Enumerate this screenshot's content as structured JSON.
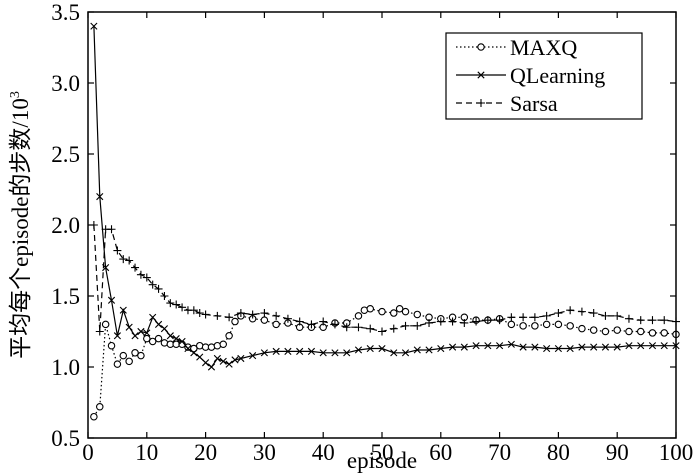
{
  "chart_data": {
    "type": "line",
    "xlabel": "episode",
    "ylabel": "平均每个episode的步数/10",
    "ylabel_superscript": "3",
    "xlim": [
      0,
      100
    ],
    "ylim": [
      0.5,
      3.5
    ],
    "xticks": [
      "0",
      "10",
      "20",
      "30",
      "40",
      "50",
      "60",
      "70",
      "80",
      "90",
      "100"
    ],
    "yticks": [
      "0.5",
      "1.0",
      "1.5",
      "2.0",
      "2.5",
      "3.0",
      "3.5"
    ],
    "legend_position": "top-right",
    "series": [
      {
        "name": "MAXQ",
        "style": "dotted-circle",
        "x": [
          1,
          2,
          3,
          4,
          5,
          6,
          7,
          8,
          9,
          10,
          11,
          12,
          13,
          14,
          15,
          16,
          17,
          18,
          19,
          20,
          21,
          22,
          23,
          24,
          25,
          26,
          28,
          30,
          32,
          34,
          36,
          38,
          40,
          42,
          44,
          46,
          47,
          48,
          50,
          52,
          53,
          54,
          56,
          58,
          60,
          62,
          64,
          66,
          68,
          70,
          72,
          74,
          76,
          78,
          80,
          82,
          84,
          86,
          88,
          90,
          92,
          94,
          96,
          98,
          100
        ],
        "y": [
          0.65,
          0.72,
          1.3,
          1.15,
          1.02,
          1.08,
          1.04,
          1.1,
          1.08,
          1.2,
          1.18,
          1.2,
          1.17,
          1.16,
          1.16,
          1.16,
          1.14,
          1.13,
          1.15,
          1.14,
          1.14,
          1.15,
          1.16,
          1.22,
          1.32,
          1.36,
          1.34,
          1.33,
          1.3,
          1.31,
          1.28,
          1.28,
          1.28,
          1.31,
          1.31,
          1.36,
          1.4,
          1.41,
          1.39,
          1.38,
          1.41,
          1.39,
          1.37,
          1.35,
          1.34,
          1.35,
          1.35,
          1.33,
          1.33,
          1.34,
          1.3,
          1.29,
          1.29,
          1.3,
          1.3,
          1.29,
          1.27,
          1.26,
          1.25,
          1.26,
          1.25,
          1.25,
          1.24,
          1.24,
          1.23
        ]
      },
      {
        "name": "QLearning",
        "style": "solid-x",
        "x": [
          1,
          2,
          3,
          4,
          5,
          6,
          7,
          8,
          9,
          10,
          11,
          12,
          13,
          14,
          15,
          16,
          17,
          18,
          19,
          20,
          21,
          22,
          23,
          24,
          25,
          26,
          28,
          30,
          32,
          34,
          36,
          38,
          40,
          42,
          44,
          46,
          48,
          50,
          52,
          54,
          56,
          58,
          60,
          62,
          64,
          66,
          68,
          70,
          72,
          74,
          76,
          78,
          80,
          82,
          84,
          86,
          88,
          90,
          92,
          94,
          96,
          98,
          100
        ],
        "y": [
          3.4,
          2.2,
          1.7,
          1.47,
          1.22,
          1.4,
          1.28,
          1.22,
          1.25,
          1.24,
          1.35,
          1.3,
          1.27,
          1.22,
          1.2,
          1.18,
          1.13,
          1.1,
          1.07,
          1.03,
          1.0,
          1.06,
          1.04,
          1.02,
          1.05,
          1.06,
          1.08,
          1.1,
          1.11,
          1.11,
          1.11,
          1.11,
          1.1,
          1.1,
          1.1,
          1.12,
          1.13,
          1.13,
          1.1,
          1.1,
          1.12,
          1.12,
          1.13,
          1.14,
          1.14,
          1.15,
          1.15,
          1.15,
          1.16,
          1.14,
          1.14,
          1.13,
          1.13,
          1.13,
          1.14,
          1.14,
          1.14,
          1.14,
          1.15,
          1.15,
          1.15,
          1.15,
          1.15
        ]
      },
      {
        "name": "Sarsa",
        "style": "dashed-plus",
        "x": [
          1,
          2,
          3,
          4,
          5,
          6,
          7,
          8,
          9,
          10,
          11,
          12,
          13,
          14,
          15,
          16,
          17,
          18,
          19,
          20,
          22,
          24,
          26,
          28,
          30,
          32,
          34,
          36,
          38,
          40,
          42,
          44,
          46,
          48,
          50,
          52,
          54,
          56,
          58,
          60,
          62,
          64,
          66,
          68,
          70,
          72,
          74,
          76,
          78,
          80,
          82,
          84,
          86,
          88,
          90,
          92,
          94,
          96,
          98,
          100
        ],
        "y": [
          2.0,
          1.25,
          1.97,
          1.97,
          1.82,
          1.76,
          1.75,
          1.7,
          1.65,
          1.63,
          1.58,
          1.55,
          1.5,
          1.45,
          1.44,
          1.42,
          1.4,
          1.4,
          1.38,
          1.37,
          1.36,
          1.35,
          1.38,
          1.37,
          1.38,
          1.36,
          1.34,
          1.32,
          1.3,
          1.32,
          1.3,
          1.28,
          1.28,
          1.27,
          1.25,
          1.27,
          1.29,
          1.29,
          1.31,
          1.32,
          1.32,
          1.31,
          1.32,
          1.33,
          1.33,
          1.35,
          1.35,
          1.35,
          1.36,
          1.38,
          1.4,
          1.39,
          1.38,
          1.36,
          1.36,
          1.34,
          1.33,
          1.33,
          1.33,
          1.32
        ]
      }
    ]
  }
}
